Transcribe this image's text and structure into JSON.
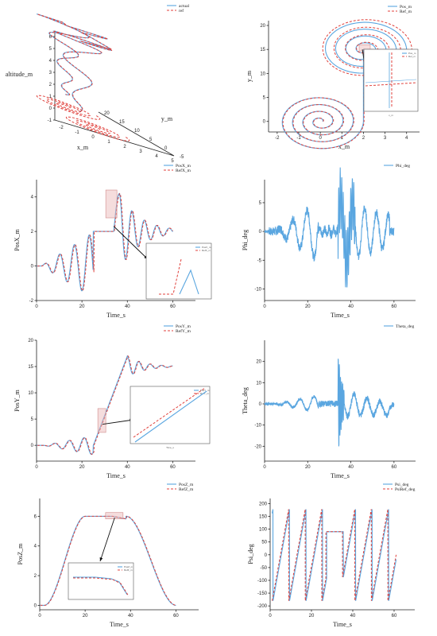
{
  "chart_data": [
    {
      "id": "traj3d",
      "type": "line",
      "panel": "3d",
      "zlabel": "altitude_m",
      "xlabel": "x_m",
      "ylabel": "y_m",
      "xticks": [
        "-2",
        "-1",
        "0",
        "1",
        "2",
        "3",
        "4",
        "5"
      ],
      "yticks": [
        "-5",
        "0",
        "5",
        "10",
        "15",
        "20"
      ],
      "zticks": [
        "-1",
        "0",
        "1",
        "2",
        "3",
        "4",
        "5",
        "6"
      ],
      "series": [
        {
          "name": "actual",
          "color": "#5aa6e0"
        },
        {
          "name": "ref",
          "color": "#e0413c"
        }
      ]
    },
    {
      "id": "xy",
      "type": "line",
      "xlabel": "x_m",
      "ylabel": "y_m",
      "xlim": [
        -2.4,
        4.6
      ],
      "ylim": [
        -2.2,
        21
      ],
      "xticks": [
        -2,
        -1,
        0,
        1,
        2,
        3,
        4
      ],
      "yticks": [
        0,
        5,
        10,
        15,
        20
      ],
      "series": [
        {
          "name": "Pos_m",
          "color": "#5aa6e0"
        },
        {
          "name": "Ref_m",
          "color": "#e0413c"
        }
      ],
      "inset_legend": [
        "Pos_m",
        "Ref_m"
      ],
      "inset_xlabel": "x_m"
    },
    {
      "id": "posx",
      "type": "line",
      "xlabel": "Time_s",
      "ylabel": "PosX_m",
      "xlim": [
        0,
        70
      ],
      "ylim": [
        -2,
        5
      ],
      "xticks": [
        0,
        20,
        40,
        60
      ],
      "yticks": [
        -2,
        0,
        2,
        4
      ],
      "series": [
        {
          "name": "PosX_m",
          "color": "#5aa6e0"
        },
        {
          "name": "RefX_m",
          "color": "#e0413c"
        }
      ],
      "inset_legend": [
        "PosX_m",
        "RefX_m"
      ]
    },
    {
      "id": "phi",
      "type": "line",
      "xlabel": "Time_s",
      "ylabel": "Phi_deg",
      "xlim": [
        0,
        70
      ],
      "ylim": [
        -12,
        9
      ],
      "xticks": [
        0,
        20,
        40,
        60
      ],
      "yticks": [
        -10,
        -5,
        0,
        5
      ],
      "series": [
        {
          "name": "Phi_deg",
          "color": "#5aa6e0"
        }
      ]
    },
    {
      "id": "posy",
      "type": "line",
      "xlabel": "Time_s",
      "ylabel": "PosY_m",
      "xlim": [
        0,
        70
      ],
      "ylim": [
        -3,
        20
      ],
      "xticks": [
        0,
        20,
        40,
        60
      ],
      "yticks": [
        0,
        5,
        10,
        15,
        20
      ],
      "series": [
        {
          "name": "PosY_m",
          "color": "#5aa6e0"
        },
        {
          "name": "RefY_m",
          "color": "#e0413c"
        }
      ],
      "inset_legend": [
        "PosY_m",
        "RefY_m"
      ],
      "inset_xlabel": "Time_s"
    },
    {
      "id": "theta",
      "type": "line",
      "xlabel": "Time_s",
      "ylabel": "Theta_deg",
      "xlim": [
        0,
        70
      ],
      "ylim": [
        -27,
        30
      ],
      "xticks": [
        0,
        20,
        40,
        60
      ],
      "yticks": [
        -20,
        -10,
        0,
        10,
        20
      ],
      "series": [
        {
          "name": "Theta_deg",
          "color": "#5aa6e0"
        }
      ]
    },
    {
      "id": "posz",
      "type": "line",
      "xlabel": "Time_s",
      "ylabel": "PosZ_m",
      "xlim": [
        0,
        70
      ],
      "ylim": [
        -0.3,
        7.2
      ],
      "xticks": [
        0,
        20,
        40,
        60
      ],
      "yticks": [
        0,
        2,
        4,
        6
      ],
      "series": [
        {
          "name": "PosZ_m",
          "color": "#5aa6e0"
        },
        {
          "name": "RefZ_m",
          "color": "#e0413c"
        }
      ],
      "inset_legend": [
        "PosZ_m",
        "RefZ_m"
      ]
    },
    {
      "id": "psi",
      "type": "line",
      "xlabel": "Time_s",
      "ylabel": "Psi_deg",
      "xlim": [
        0,
        70
      ],
      "ylim": [
        -215,
        220
      ],
      "xticks": [
        0,
        20,
        40,
        60
      ],
      "yticks": [
        -200,
        -150,
        -100,
        -50,
        0,
        50,
        100,
        150,
        200
      ],
      "series": [
        {
          "name": "Psi_deg",
          "color": "#5aa6e0"
        },
        {
          "name": "PsiRef_deg",
          "color": "#e0413c"
        }
      ]
    }
  ]
}
